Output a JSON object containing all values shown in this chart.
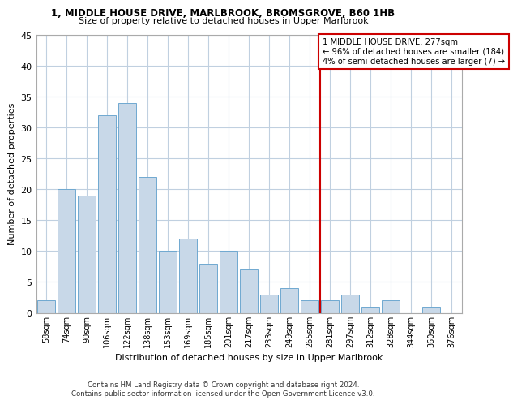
{
  "title_line1": "1, MIDDLE HOUSE DRIVE, MARLBROOK, BROMSGROVE, B60 1HB",
  "title_line2": "Size of property relative to detached houses in Upper Marlbrook",
  "xlabel": "Distribution of detached houses by size in Upper Marlbrook",
  "ylabel": "Number of detached properties",
  "categories": [
    "58sqm",
    "74sqm",
    "90sqm",
    "106sqm",
    "122sqm",
    "138sqm",
    "153sqm",
    "169sqm",
    "185sqm",
    "201sqm",
    "217sqm",
    "233sqm",
    "249sqm",
    "265sqm",
    "281sqm",
    "297sqm",
    "312sqm",
    "328sqm",
    "344sqm",
    "360sqm",
    "376sqm"
  ],
  "values": [
    2,
    20,
    19,
    32,
    34,
    22,
    10,
    12,
    8,
    10,
    7,
    3,
    4,
    2,
    2,
    3,
    1,
    2,
    0,
    1,
    0
  ],
  "bar_color": "#c8d8e8",
  "bar_edge_color": "#6fa8d0",
  "property_line_idx": 14,
  "property_line_label": "1 MIDDLE HOUSE DRIVE: 277sqm",
  "annotation_line2": "← 96% of detached houses are smaller (184)",
  "annotation_line3": "4% of semi-detached houses are larger (7) →",
  "line_color": "#cc0000",
  "ylim": [
    0,
    45
  ],
  "yticks": [
    0,
    5,
    10,
    15,
    20,
    25,
    30,
    35,
    40,
    45
  ],
  "footer_line1": "Contains HM Land Registry data © Crown copyright and database right 2024.",
  "footer_line2": "Contains public sector information licensed under the Open Government Licence v3.0.",
  "background_color": "#ffffff",
  "grid_color": "#c0d0e0"
}
